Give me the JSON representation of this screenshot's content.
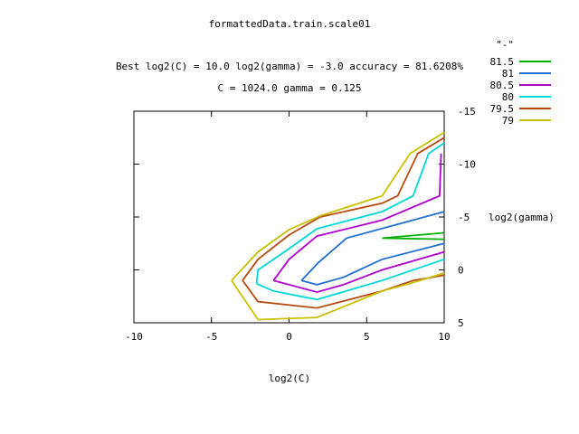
{
  "chart_data": {
    "type": "line",
    "title_lines": [
      "formattedData.train.scale01",
      "Best log2(C) = 10.0  log2(gamma) = -3.0  accuracy = 81.6208%",
      "C = 1024.0  gamma = 0.125"
    ],
    "xlabel": "log2(C)",
    "ylabel": "log2(gamma)",
    "xlim": [
      -10,
      10
    ],
    "ylim": [
      5,
      -15
    ],
    "y_axis_side": "right",
    "xticks": [
      -10,
      -5,
      0,
      5,
      10
    ],
    "xtick_labels": [
      "-10",
      "-5",
      "0",
      "5",
      "10"
    ],
    "yticks": [
      -15,
      -10,
      -5,
      0,
      5
    ],
    "ytick_labels": [
      "-15",
      "-10",
      "-5",
      "0",
      "5"
    ],
    "grid": false,
    "legend_title": "\"-\"",
    "legend_position": "top-right",
    "series": [
      {
        "name": "81.5",
        "color": "#00b000",
        "segments": [
          [
            [
              10,
              -3.5
            ],
            [
              6,
              -3
            ],
            [
              10,
              -2.9
            ]
          ]
        ]
      },
      {
        "name": "81",
        "color": "#1f6fd6",
        "segments": [
          [
            [
              10,
              -5.5
            ],
            [
              3.7,
              -3
            ],
            [
              1.9,
              -0.7
            ],
            [
              0.8,
              1
            ]
          ],
          [
            [
              10,
              -2.5
            ],
            [
              6,
              -1
            ],
            [
              3.5,
              0.7
            ],
            [
              1.8,
              1.4
            ],
            [
              0.8,
              1
            ]
          ]
        ]
      },
      {
        "name": "80.5",
        "color": "#b000d0",
        "segments": [
          [
            [
              9.8,
              -11
            ],
            [
              9.7,
              -7
            ],
            [
              6,
              -4.7
            ],
            [
              1.8,
              -3.2
            ],
            [
              0,
              -1
            ],
            [
              -1,
              1
            ]
          ],
          [
            [
              10,
              -1.7
            ],
            [
              6,
              0
            ],
            [
              3.5,
              1.4
            ],
            [
              1.8,
              2.1
            ],
            [
              -1,
              1
            ]
          ]
        ]
      },
      {
        "name": "80",
        "color": "#00d8d8",
        "segments": [
          [
            [
              10,
              -12
            ],
            [
              9,
              -11
            ],
            [
              8,
              -7
            ],
            [
              6,
              -5.5
            ],
            [
              1.8,
              -3.9
            ],
            [
              0,
              -2
            ],
            [
              -2,
              0
            ],
            [
              -2.1,
              1.3
            ]
          ],
          [
            [
              10,
              -1
            ],
            [
              6,
              1
            ],
            [
              1.8,
              2.8
            ],
            [
              -1,
              2
            ],
            [
              -2.1,
              1.3
            ]
          ]
        ]
      },
      {
        "name": "79.5",
        "color": "#b84a10",
        "segments": [
          [
            [
              10,
              -12.5
            ],
            [
              8.3,
              -11
            ],
            [
              7,
              -7
            ],
            [
              6,
              -6.3
            ],
            [
              2,
              -5
            ],
            [
              0,
              -3.3
            ],
            [
              -2,
              -1
            ],
            [
              -3,
              1
            ]
          ],
          [
            [
              10,
              0.5
            ],
            [
              8,
              1
            ],
            [
              6,
              2
            ],
            [
              1.8,
              3.6
            ],
            [
              -2,
              3
            ],
            [
              -3,
              1
            ]
          ]
        ]
      },
      {
        "name": "79",
        "color": "#c8c000",
        "segments": [
          [
            [
              10,
              -13
            ],
            [
              7.8,
              -11
            ],
            [
              6,
              -7
            ],
            [
              2,
              -5.1
            ],
            [
              0,
              -3.8
            ],
            [
              -2,
              -1.7
            ],
            [
              -3.7,
              1
            ]
          ],
          [
            [
              10,
              0.3
            ],
            [
              8,
              1.2
            ],
            [
              6,
              2
            ],
            [
              1.8,
              4.5
            ],
            [
              -2,
              4.7
            ],
            [
              -3.7,
              1
            ]
          ]
        ]
      }
    ]
  }
}
